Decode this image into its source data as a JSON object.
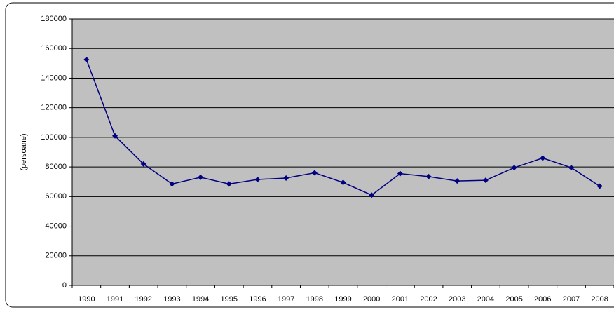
{
  "chart_data": {
    "type": "line",
    "y_label": "(persoane)",
    "categories": [
      "1990",
      "1991",
      "1992",
      "1993",
      "1994",
      "1995",
      "1996",
      "1997",
      "1998",
      "1999",
      "2000",
      "2001",
      "2002",
      "2003",
      "2004",
      "2005",
      "2006",
      "2007",
      "2008"
    ],
    "series": [
      {
        "color": "#000080",
        "values": [
          152500,
          101000,
          82000,
          68500,
          73000,
          68500,
          71500,
          72500,
          76000,
          69500,
          61000,
          75500,
          73500,
          70500,
          71000,
          79500,
          86000,
          79500,
          67000
        ]
      }
    ],
    "ylim": [
      0,
      180000
    ],
    "yticks": [
      0,
      20000,
      40000,
      60000,
      80000,
      100000,
      120000,
      140000,
      160000,
      180000
    ],
    "grid": true,
    "plot_background": "#c0c0c0"
  }
}
